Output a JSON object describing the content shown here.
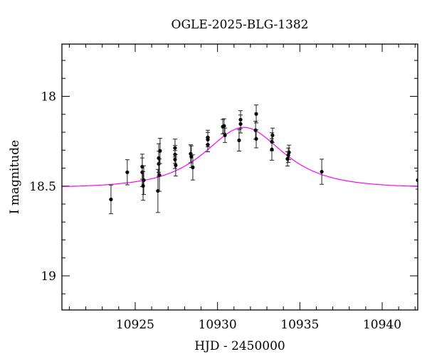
{
  "chart_data": {
    "type": "scatter",
    "title": "OGLE-2025-BLG-1382",
    "xlabel": "HJD - 2450000",
    "ylabel": "I magnitude",
    "xlim": [
      10920.55,
      10942.16
    ],
    "ylim": [
      19.19,
      17.709
    ],
    "y_inverted": true,
    "x_ticks": [
      10925,
      10930,
      10935,
      10940
    ],
    "x_tick_labels": [
      "10925",
      "10930",
      "10935",
      "10940"
    ],
    "y_ticks": [
      18,
      18.5,
      19
    ],
    "y_tick_labels": [
      "18",
      "18.5",
      "19"
    ],
    "x_minor_step": 1,
    "y_minor_step": 0.1,
    "grid": false,
    "point_color": "#000000",
    "model_color": "#ff00ff",
    "model": {
      "type": "point-lens",
      "t0": 10931.6,
      "u0": 0.97,
      "tE": 2.9,
      "baseline_mag": 18.51
    },
    "points": [
      {
        "x": 10923.53,
        "y": 18.574,
        "err": 0.08
      },
      {
        "x": 10924.52,
        "y": 18.423,
        "err": 0.07
      },
      {
        "x": 10925.43,
        "y": 18.392,
        "err": 0.07
      },
      {
        "x": 10925.43,
        "y": 18.423,
        "err": 0.08
      },
      {
        "x": 10925.52,
        "y": 18.467,
        "err": 0.08
      },
      {
        "x": 10925.48,
        "y": 18.499,
        "err": 0.08
      },
      {
        "x": 10926.38,
        "y": 18.527,
        "err": 0.12
      },
      {
        "x": 10926.47,
        "y": 18.439,
        "err": 0.09
      },
      {
        "x": 10926.43,
        "y": 18.376,
        "err": 0.07
      },
      {
        "x": 10926.43,
        "y": 18.344,
        "err": 0.08
      },
      {
        "x": 10926.51,
        "y": 18.304,
        "err": 0.07
      },
      {
        "x": 10927.42,
        "y": 18.288,
        "err": 0.05
      },
      {
        "x": 10927.42,
        "y": 18.324,
        "err": 0.05
      },
      {
        "x": 10927.42,
        "y": 18.352,
        "err": 0.05
      },
      {
        "x": 10927.46,
        "y": 18.384,
        "err": 0.06
      },
      {
        "x": 10928.37,
        "y": 18.32,
        "err": 0.05
      },
      {
        "x": 10928.41,
        "y": 18.336,
        "err": 0.06
      },
      {
        "x": 10928.5,
        "y": 18.396,
        "err": 0.07
      },
      {
        "x": 10929.41,
        "y": 18.229,
        "err": 0.04
      },
      {
        "x": 10929.41,
        "y": 18.269,
        "err": 0.04
      },
      {
        "x": 10929.41,
        "y": 18.241,
        "err": 0.04
      },
      {
        "x": 10930.32,
        "y": 18.169,
        "err": 0.04
      },
      {
        "x": 10930.4,
        "y": 18.165,
        "err": 0.04
      },
      {
        "x": 10930.45,
        "y": 18.217,
        "err": 0.04
      },
      {
        "x": 10931.4,
        "y": 18.13,
        "err": 0.05
      },
      {
        "x": 10931.4,
        "y": 18.154,
        "err": 0.05
      },
      {
        "x": 10931.31,
        "y": 18.245,
        "err": 0.06
      },
      {
        "x": 10932.35,
        "y": 18.098,
        "err": 0.05
      },
      {
        "x": 10932.31,
        "y": 18.189,
        "err": 0.05
      },
      {
        "x": 10932.35,
        "y": 18.237,
        "err": 0.05
      },
      {
        "x": 10933.34,
        "y": 18.217,
        "err": 0.04
      },
      {
        "x": 10933.3,
        "y": 18.253,
        "err": 0.05
      },
      {
        "x": 10933.3,
        "y": 18.296,
        "err": 0.06
      },
      {
        "x": 10934.34,
        "y": 18.312,
        "err": 0.04
      },
      {
        "x": 10934.3,
        "y": 18.328,
        "err": 0.04
      },
      {
        "x": 10934.25,
        "y": 18.348,
        "err": 0.04
      },
      {
        "x": 10936.33,
        "y": 18.42,
        "err": 0.07
      },
      {
        "x": 10942.16,
        "y": 18.467,
        "err": 0.05
      }
    ]
  }
}
